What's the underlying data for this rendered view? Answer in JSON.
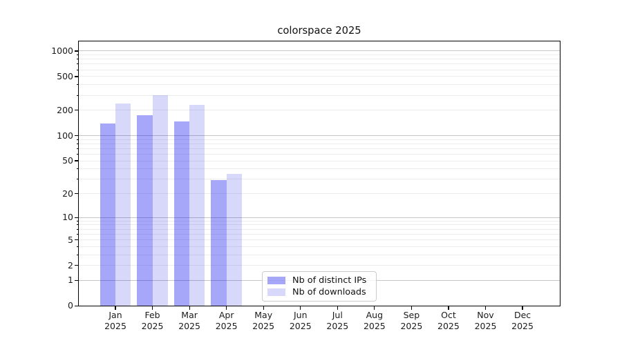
{
  "chart_data": {
    "type": "bar",
    "title": "colorspace 2025",
    "categories": [
      "Jan",
      "Feb",
      "Mar",
      "Apr",
      "May",
      "Jun",
      "Jul",
      "Aug",
      "Sep",
      "Oct",
      "Nov",
      "Dec"
    ],
    "x_year_line": "2025",
    "series": [
      {
        "name": "Nb of distinct IPs",
        "fill": "rgba(0,0,240,0.345)",
        "solid_hex": "#a8a8fa",
        "values": [
          140,
          175,
          148,
          29,
          null,
          null,
          null,
          null,
          null,
          null,
          null,
          null
        ]
      },
      {
        "name": "Nb of downloads",
        "fill": "rgba(0,0,222,0.152)",
        "solid_hex": "#d9d9fa",
        "values": [
          240,
          300,
          230,
          35,
          null,
          null,
          null,
          null,
          null,
          null,
          null,
          null
        ]
      }
    ],
    "yscale": "log1p",
    "ylim": [
      0,
      1300
    ],
    "ytick_labels": [
      0,
      1,
      2,
      5,
      10,
      20,
      50,
      100,
      200,
      500,
      1000
    ],
    "grid": {
      "major_values": [
        1,
        10,
        100,
        1000
      ],
      "minor_values": [
        2,
        3,
        4,
        5,
        6,
        7,
        8,
        9,
        20,
        30,
        40,
        50,
        60,
        70,
        80,
        90,
        200,
        300,
        400,
        500,
        600,
        700,
        800,
        900
      ],
      "major_color": "#c6c6c6",
      "minor_color": "#ededed"
    },
    "legend_position": "bottom-center",
    "frame_color": "#000000",
    "background": "#ffffff"
  }
}
